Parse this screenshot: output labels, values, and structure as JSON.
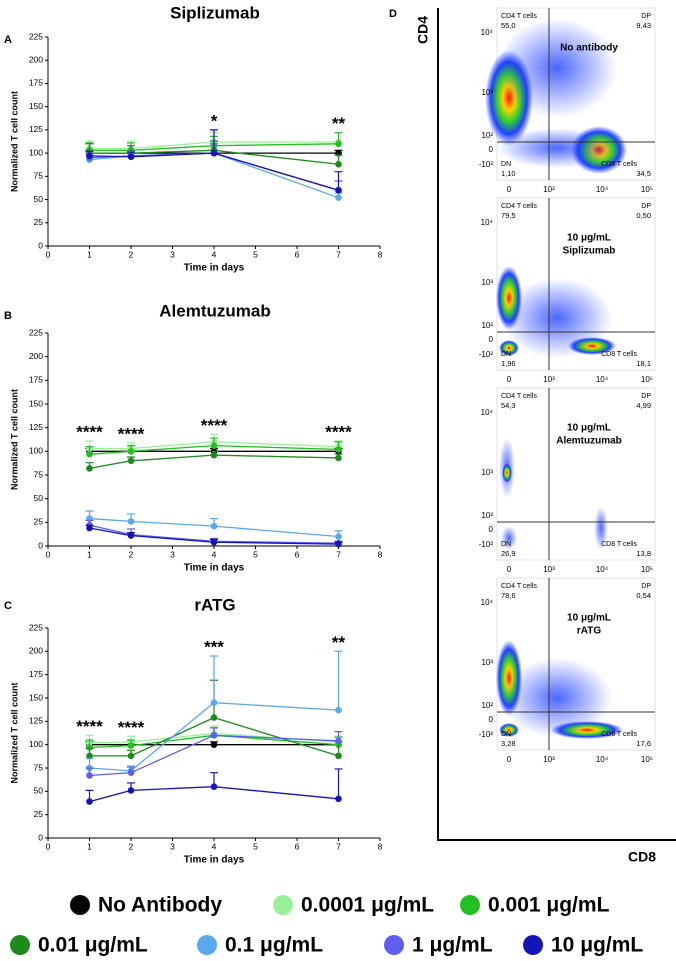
{
  "chart_data": [
    {
      "type": "line",
      "panel_label": "A",
      "title": "Siplizumab",
      "x_label": "Time in days",
      "y_label": "Normalized T cell count",
      "x": [
        1,
        2,
        4,
        7
      ],
      "xlim": [
        0,
        8
      ],
      "xticks": [
        0,
        1,
        2,
        3,
        4,
        5,
        6,
        7,
        8
      ],
      "ylim": [
        0,
        225
      ],
      "yticks": [
        0,
        25,
        50,
        75,
        100,
        125,
        150,
        175,
        200,
        225
      ],
      "series": [
        {
          "name": "No Antibody",
          "color": "#000000",
          "values": [
            100,
            100,
            100,
            100
          ],
          "errors": [
            3,
            3,
            3,
            3
          ]
        },
        {
          "name": "0.0001 μg/mL",
          "color": "#98f098",
          "values": [
            105,
            105,
            112,
            112
          ],
          "errors": [
            8,
            8,
            10,
            10
          ]
        },
        {
          "name": "0.001 μg/mL",
          "color": "#22c022",
          "values": [
            103,
            103,
            108,
            110
          ],
          "errors": [
            8,
            8,
            10,
            12
          ]
        },
        {
          "name": "0.01 μg/mL",
          "color": "#1e8a1e",
          "values": [
            100,
            100,
            103,
            88
          ],
          "errors": [
            10,
            8,
            10,
            10
          ]
        },
        {
          "name": "0.1 μg/mL",
          "color": "#5aa9ee",
          "values": [
            93,
            97,
            100,
            52
          ],
          "errors": [
            5,
            5,
            10,
            5
          ]
        },
        {
          "name": "1 μg/mL",
          "color": "#5e5ef0",
          "values": [
            95,
            97,
            100,
            60
          ],
          "errors": [
            5,
            5,
            10,
            10
          ]
        },
        {
          "name": "10 μg/mL",
          "color": "#1515b5",
          "values": [
            97,
            96,
            100,
            60
          ],
          "errors": [
            5,
            5,
            25,
            20
          ]
        }
      ],
      "annotations": [
        {
          "x": 4,
          "text": "*"
        },
        {
          "x": 7,
          "text": "**"
        }
      ]
    },
    {
      "type": "line",
      "panel_label": "B",
      "title": "Alemtuzumab",
      "x_label": "Time in days",
      "y_label": "Normalized T cell count",
      "x": [
        1,
        2,
        4,
        7
      ],
      "xlim": [
        0,
        8
      ],
      "xticks": [
        0,
        1,
        2,
        3,
        4,
        5,
        6,
        7,
        8
      ],
      "ylim": [
        0,
        225
      ],
      "yticks": [
        0,
        25,
        50,
        75,
        100,
        125,
        150,
        175,
        200,
        225
      ],
      "series": [
        {
          "name": "No Antibody",
          "color": "#000000",
          "values": [
            100,
            100,
            100,
            100
          ],
          "errors": [
            3,
            3,
            3,
            3
          ]
        },
        {
          "name": "0.0001 μg/mL",
          "color": "#98f098",
          "values": [
            103,
            103,
            110,
            105
          ],
          "errors": [
            8,
            6,
            8,
            6
          ]
        },
        {
          "name": "0.001 μg/mL",
          "color": "#22c022",
          "values": [
            97,
            100,
            106,
            102
          ],
          "errors": [
            8,
            6,
            8,
            8
          ]
        },
        {
          "name": "0.01 μg/mL",
          "color": "#1e8a1e",
          "values": [
            82,
            90,
            96,
            93
          ],
          "errors": [
            6,
            4,
            4,
            4
          ]
        },
        {
          "name": "0.1 μg/mL",
          "color": "#5aa9ee",
          "values": [
            29,
            26,
            21,
            10
          ],
          "errors": [
            8,
            8,
            8,
            6
          ]
        },
        {
          "name": "1 μg/mL",
          "color": "#5e5ef0",
          "values": [
            22,
            12,
            5,
            3
          ],
          "errors": [
            5,
            6,
            3,
            2
          ]
        },
        {
          "name": "10 μg/mL",
          "color": "#1515b5",
          "values": [
            19,
            11,
            4,
            2
          ],
          "errors": [
            3,
            3,
            3,
            2
          ]
        }
      ],
      "annotations": [
        {
          "x": 1,
          "text": "****"
        },
        {
          "x": 2,
          "text": "****"
        },
        {
          "x": 4,
          "text": "****"
        },
        {
          "x": 7,
          "text": "****"
        }
      ]
    },
    {
      "type": "line",
      "panel_label": "C",
      "title": "rATG",
      "x_label": "Time in days",
      "y_label": "Normalized T cell count",
      "x": [
        1,
        2,
        4,
        7
      ],
      "xlim": [
        0,
        8
      ],
      "xticks": [
        0,
        1,
        2,
        3,
        4,
        5,
        6,
        7,
        8
      ],
      "ylim": [
        0,
        225
      ],
      "yticks": [
        0,
        25,
        50,
        75,
        100,
        125,
        150,
        175,
        200,
        225
      ],
      "series": [
        {
          "name": "No Antibody",
          "color": "#000000",
          "values": [
            100,
            100,
            100,
            100
          ],
          "errors": [
            3,
            3,
            3,
            3
          ]
        },
        {
          "name": "0.0001 μg/mL",
          "color": "#98f098",
          "values": [
            102,
            103,
            112,
            103
          ],
          "errors": [
            8,
            6,
            8,
            6
          ]
        },
        {
          "name": "0.001 μg/mL",
          "color": "#22c022",
          "values": [
            97,
            99,
            110,
            100
          ],
          "errors": [
            8,
            6,
            8,
            8
          ]
        },
        {
          "name": "0.01 μg/mL",
          "color": "#1e8a1e",
          "values": [
            88,
            88,
            129,
            88
          ],
          "errors": [
            8,
            6,
            40,
            15
          ]
        },
        {
          "name": "0.1 μg/mL",
          "color": "#5aa9ee",
          "values": [
            75,
            72,
            145,
            137
          ],
          "errors": [
            10,
            5,
            50,
            63
          ]
        },
        {
          "name": "1 μg/mL",
          "color": "#5e5ef0",
          "values": [
            67,
            70,
            110,
            104
          ],
          "errors": [
            8,
            6,
            8,
            10
          ]
        },
        {
          "name": "10 μg/mL",
          "color": "#1515b5",
          "values": [
            39,
            51,
            55,
            42
          ],
          "errors": [
            12,
            8,
            15,
            32
          ]
        }
      ],
      "annotations": [
        {
          "x": 1,
          "text": "****"
        },
        {
          "x": 2,
          "text": "****"
        },
        {
          "x": 4,
          "text": "***"
        },
        {
          "x": 7,
          "text": "**"
        }
      ]
    }
  ],
  "flow_panel": {
    "label": "D",
    "y_label": "CD4",
    "x_label": "CD8",
    "y_ticks": [
      "10⁴",
      "10³",
      "10²",
      "0",
      "-10²"
    ],
    "x_ticks": [
      "0",
      "10³",
      "10⁴",
      "10⁵"
    ],
    "plots": [
      {
        "title": [
          "No antibody"
        ],
        "quadrants": [
          {
            "name": "CD4 T cells",
            "value": "55,0"
          },
          {
            "name": "DP",
            "value": "9,43"
          },
          {
            "name": "DN",
            "value": "1,10"
          },
          {
            "name": "CD8 T cells",
            "value": "34,5"
          }
        ]
      },
      {
        "title": [
          "10 μg/mL",
          "Siplizumab"
        ],
        "quadrants": [
          {
            "name": "CD4 T cells",
            "value": "79,5"
          },
          {
            "name": "DP",
            "value": "0,50"
          },
          {
            "name": "DN",
            "value": "1,96"
          },
          {
            "name": "CD8 T cells",
            "value": "18,1"
          }
        ]
      },
      {
        "title": [
          "10 μg/mL",
          "Alemtuzumab"
        ],
        "quadrants": [
          {
            "name": "CD4 T cells",
            "value": "54,3"
          },
          {
            "name": "DP",
            "value": "4,99"
          },
          {
            "name": "DN",
            "value": "26,9"
          },
          {
            "name": "CD8 T cells",
            "value": "13,8"
          }
        ]
      },
      {
        "title": [
          "10 μg/mL",
          "rATG"
        ],
        "quadrants": [
          {
            "name": "CD4 T cells",
            "value": "78,6"
          },
          {
            "name": "DP",
            "value": "0,54"
          },
          {
            "name": "DN",
            "value": "3,28"
          },
          {
            "name": "CD8 T cells",
            "value": "17,6"
          }
        ]
      }
    ]
  }
}
